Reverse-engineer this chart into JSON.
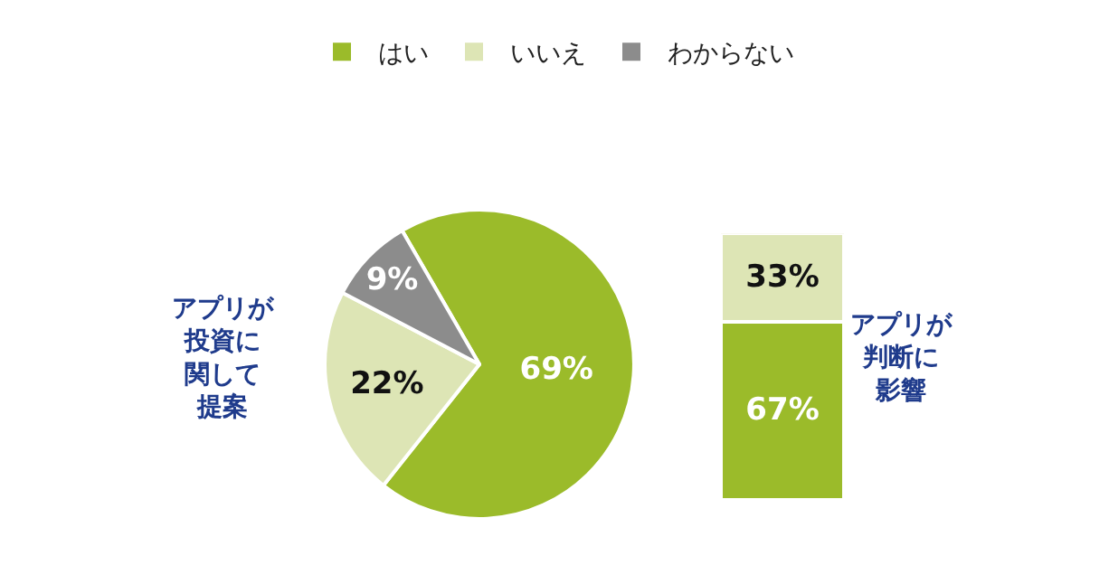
{
  "chart_data": [
    {
      "type": "pie",
      "categories": [
        "はい",
        "いいえ",
        "わからない"
      ],
      "values": [
        69,
        22,
        9
      ],
      "value_labels": [
        "69%",
        "22%",
        "9%"
      ],
      "colors": [
        "#9bbb2a",
        "#dde5b5",
        "#8c8c8c"
      ],
      "legend": "top",
      "annotations": [
        "アプリが投資に関して提案"
      ]
    },
    {
      "type": "bar",
      "stacked": true,
      "categories": [
        null
      ],
      "series": [
        {
          "color": "#9bbb2a",
          "values": [
            67
          ],
          "value_labels": [
            "67%"
          ]
        },
        {
          "color": "#dde5b5",
          "values": [
            33
          ],
          "value_labels": [
            "33%"
          ]
        }
      ],
      "tick_labels": false,
      "annotations": [
        "アプリが判断に影響"
      ]
    }
  ]
}
